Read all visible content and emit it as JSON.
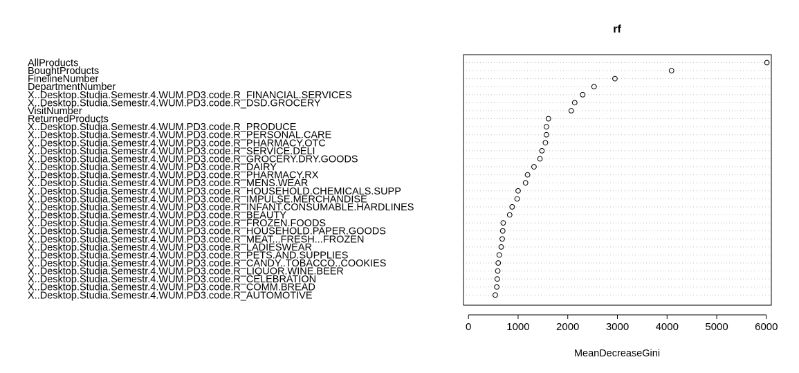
{
  "chart_data": {
    "type": "scatter",
    "title": "rf",
    "xlabel": "MeanDecreaseGini",
    "ylabel": "",
    "xlim": [
      -100,
      6100
    ],
    "x_ticks": [
      0,
      1000,
      2000,
      3000,
      4000,
      5000,
      6000
    ],
    "grid": "horizontal dotted",
    "legend": "none",
    "marker_color": "#000000",
    "grid_color": "#bebebe",
    "points": [
      {
        "label": "AllProducts",
        "value": 6010
      },
      {
        "label": "BoughtProducts",
        "value": 4090
      },
      {
        "label": "FinelineNumber",
        "value": 2950
      },
      {
        "label": "DepartmentNumber",
        "value": 2530
      },
      {
        "label": "X..Desktop.Studia.Semestr.4.WUM.PD3.code.R_FINANCIAL.SERVICES",
        "value": 2300
      },
      {
        "label": "X..Desktop.Studia.Semestr.4.WUM.PD3.code.R_DSD.GROCERY",
        "value": 2140
      },
      {
        "label": "VisitNumber",
        "value": 2070
      },
      {
        "label": "ReturnedProducts",
        "value": 1610
      },
      {
        "label": "X..Desktop.Studia.Semestr.4.WUM.PD3.code.R_PRODUCE",
        "value": 1570
      },
      {
        "label": "X..Desktop.Studia.Semestr.4.WUM.PD3.code.R_PERSONAL.CARE",
        "value": 1570
      },
      {
        "label": "X..Desktop.Studia.Semestr.4.WUM.PD3.code.R_PHARMACY.OTC",
        "value": 1550
      },
      {
        "label": "X..Desktop.Studia.Semestr.4.WUM.PD3.code.R_SERVICE.DELI",
        "value": 1480
      },
      {
        "label": "X..Desktop.Studia.Semestr.4.WUM.PD3.code.R_GROCERY.DRY.GOODS",
        "value": 1440
      },
      {
        "label": "X..Desktop.Studia.Semestr.4.WUM.PD3.code.R_DAIRY",
        "value": 1320
      },
      {
        "label": "X..Desktop.Studia.Semestr.4.WUM.PD3.code.R_PHARMACY.RX",
        "value": 1190
      },
      {
        "label": "X..Desktop.Studia.Semestr.4.WUM.PD3.code.R_MENS.WEAR",
        "value": 1150
      },
      {
        "label": "X..Desktop.Studia.Semestr.4.WUM.PD3.code.R_HOUSEHOLD.CHEMICALS.SUPP",
        "value": 1000
      },
      {
        "label": "X..Desktop.Studia.Semestr.4.WUM.PD3.code.R_IMPULSE.MERCHANDISE",
        "value": 980
      },
      {
        "label": "X..Desktop.Studia.Semestr.4.WUM.PD3.code.R_INFANT.CONSUMABLE.HARDLINES",
        "value": 880
      },
      {
        "label": "X..Desktop.Studia.Semestr.4.WUM.PD3.code.R_BEAUTY",
        "value": 830
      },
      {
        "label": "X..Desktop.Studia.Semestr.4.WUM.PD3.code.R_FROZEN.FOODS",
        "value": 700
      },
      {
        "label": "X..Desktop.Studia.Semestr.4.WUM.PD3.code.R_HOUSEHOLD.PAPER.GOODS",
        "value": 690
      },
      {
        "label": "X..Desktop.Studia.Semestr.4.WUM.PD3.code.R_MEAT...FRESH...FROZEN",
        "value": 680
      },
      {
        "label": "X..Desktop.Studia.Semestr.4.WUM.PD3.code.R_LADIESWEAR",
        "value": 660
      },
      {
        "label": "X..Desktop.Studia.Semestr.4.WUM.PD3.code.R_PETS.AND.SUPPLIES",
        "value": 620
      },
      {
        "label": "X..Desktop.Studia.Semestr.4.WUM.PD3.code.R_CANDY..TOBACCO..COOKIES",
        "value": 600
      },
      {
        "label": "X..Desktop.Studia.Semestr.4.WUM.PD3.code.R_LIQUOR.WINE.BEER",
        "value": 590
      },
      {
        "label": "X..Desktop.Studia.Semestr.4.WUM.PD3.code.R_CELEBRATION",
        "value": 580
      },
      {
        "label": "X..Desktop.Studia.Semestr.4.WUM.PD3.code.R_COMM.BREAD",
        "value": 570
      },
      {
        "label": "X..Desktop.Studia.Semestr.4.WUM.PD3.code.R_AUTOMOTIVE",
        "value": 540
      }
    ]
  }
}
